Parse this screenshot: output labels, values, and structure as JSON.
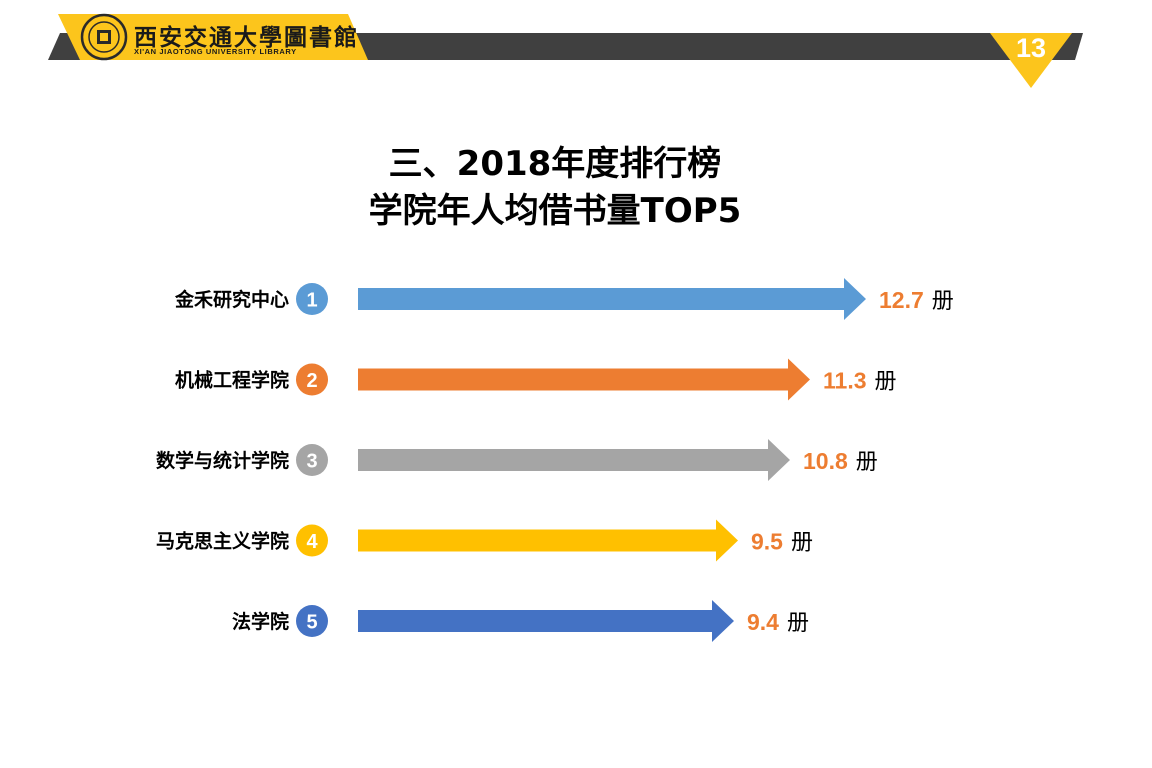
{
  "header": {
    "logo_cn": "西安交通大學圖書館",
    "logo_en": "XI'AN JIAOTONG UNIVERSITY LIBRARY",
    "page_number": "13",
    "colors": {
      "accent": "#fcc51c",
      "band": "#404040"
    }
  },
  "title": {
    "line1": "三、2018年度排行榜",
    "line2": "学院年人均借书量TOP5"
  },
  "chart_data": {
    "type": "bar",
    "orientation": "horizontal",
    "title": "三、2018年度排行榜 学院年人均借书量TOP5",
    "unit": "册",
    "categories": [
      "金禾研究中心",
      "机械工程学院",
      "数学与统计学院",
      "马克思主义学院",
      "法学院"
    ],
    "ranks": [
      "1",
      "2",
      "3",
      "4",
      "5"
    ],
    "values": [
      12.7,
      11.3,
      10.8,
      9.5,
      9.4
    ],
    "value_labels": [
      "12.7",
      "11.3",
      "10.8",
      "9.5",
      "9.4"
    ],
    "colors": [
      "#5b9bd5",
      "#ed7d31",
      "#a5a5a5",
      "#ffc000",
      "#4472c4"
    ],
    "xlim": [
      0,
      12.7
    ],
    "axes_shown": false,
    "grid": false,
    "legend": "none"
  }
}
